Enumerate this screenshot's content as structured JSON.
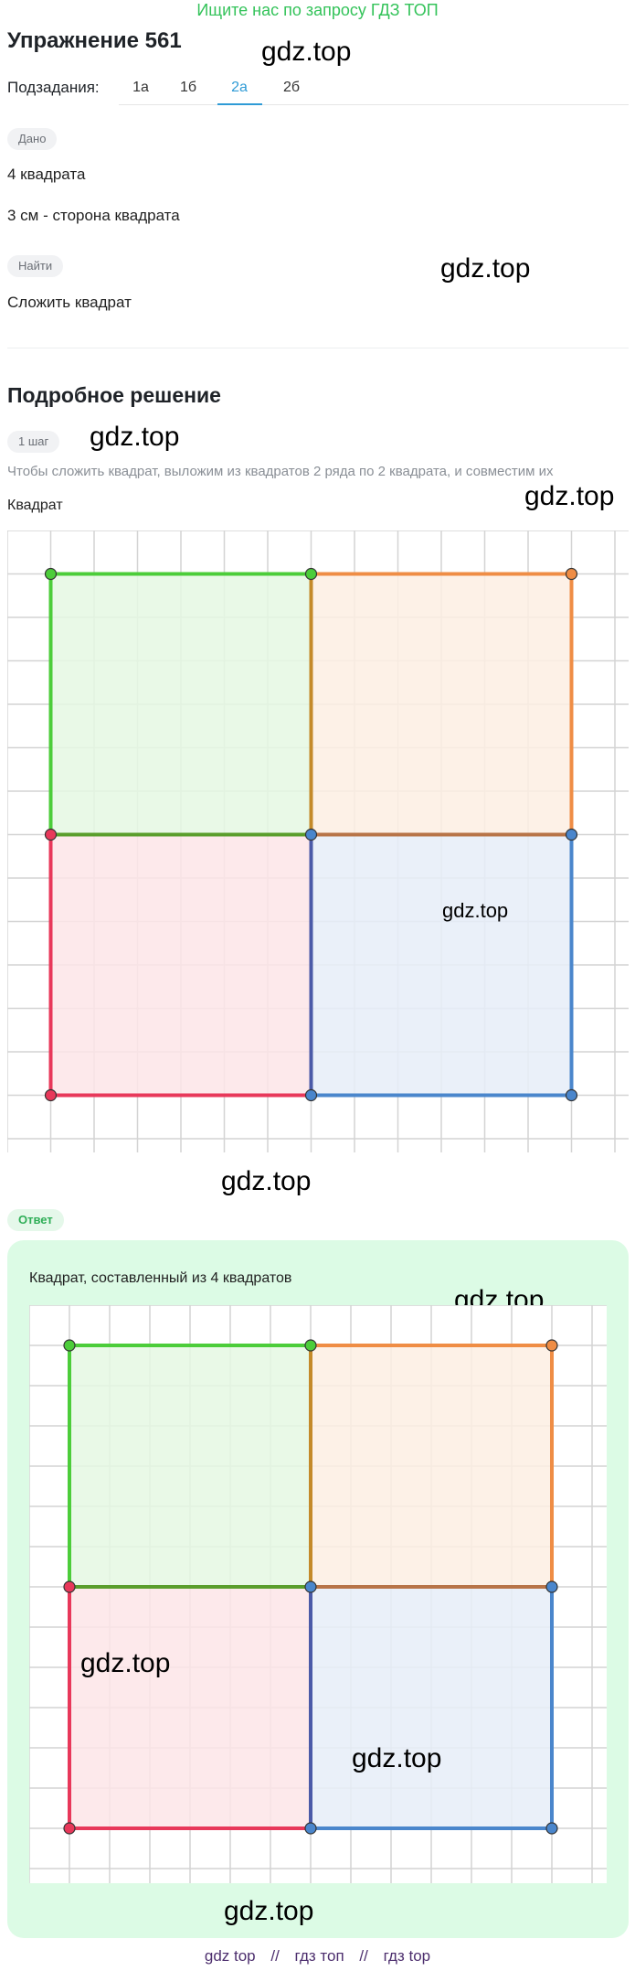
{
  "banner": "Ищите нас по запросу ГДЗ ТОП",
  "title": "Упражнение 561",
  "watermark": "gdz.top",
  "subtasks": {
    "label": "Подзадания:",
    "tabs": [
      "1а",
      "1б",
      "2а",
      "2б"
    ],
    "active": "2а"
  },
  "given": {
    "pill": "Дано",
    "lines": [
      "4 квадрата",
      "3 см - сторона квадрата"
    ]
  },
  "find": {
    "pill": "Найти",
    "line": "Сложить квадрат"
  },
  "solution": {
    "heading": "Подробное решение",
    "step_pill": "1 шаг",
    "step_text": "Чтобы сложить квадрат, выложим из квадратов 2 ряда по 2 квадрата, и совместим их",
    "figure_label": "Квадрат"
  },
  "answer": {
    "pill": "Ответ",
    "caption": "Квадрат, составленный из 4 квадратов"
  },
  "squares": {
    "top_left": {
      "fill": "#e5f8e3",
      "stroke": "#4ccd3a"
    },
    "top_right": {
      "fill": "#fdeee3",
      "stroke": "#ef8d45"
    },
    "bottom_left": {
      "fill": "#fde5e8",
      "stroke": "#e8385a"
    },
    "bottom_right": {
      "fill": "#e6edf8",
      "stroke": "#4a86cc"
    }
  },
  "footer": [
    "gdz top",
    "//",
    "гдз топ",
    "//",
    "гдз top"
  ]
}
